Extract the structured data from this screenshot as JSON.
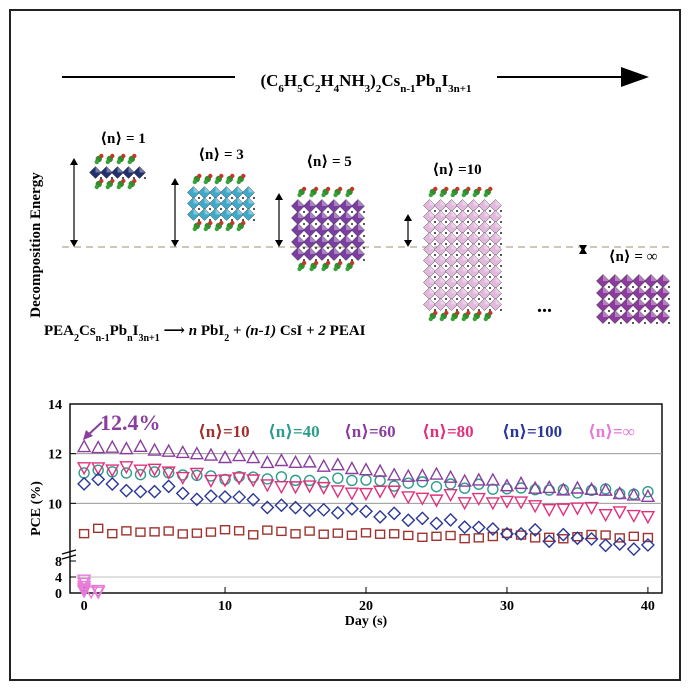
{
  "top": {
    "formula": {
      "main": "(C",
      "parts": [
        {
          "t": "(C",
          "sub": "6"
        },
        {
          "t": "H",
          "sub": "5"
        },
        {
          "t": "C",
          "sub": "2"
        },
        {
          "t": "H",
          "sub": "4"
        },
        {
          "t": "NH",
          "sub": "3"
        },
        {
          "t": ")",
          "sub": "2"
        },
        {
          "t": "Cs",
          "sub": "n-1"
        },
        {
          "t": "Pb",
          "sub": "n"
        },
        {
          "t": "I",
          "sub": "3n+1"
        }
      ]
    },
    "y_axis_label": "Decomposition Energy",
    "phases": [
      {
        "label": "⟨n⟩ = 1",
        "rows": 1,
        "color": "#23306e"
      },
      {
        "label": "⟨n⟩ = 3",
        "rows": 3,
        "color": "#3fa9c9"
      },
      {
        "label": "⟨n⟩ = 5",
        "rows": 5,
        "color": "#7a3fa0"
      },
      {
        "label": "⟨n⟩ =10",
        "rows": 10,
        "color": "#e2b9dc"
      },
      {
        "label": "⟨n⟩ = ∞",
        "rows": 4,
        "color": "#8c3c9c"
      }
    ],
    "ellipsis": "...",
    "reaction": {
      "reactant": [
        {
          "t": "PEA",
          "sub": "2"
        },
        {
          "t": "Cs",
          "sub": "n-1"
        },
        {
          "t": "Pb",
          "sub": "n"
        },
        {
          "t": "I",
          "sub": "3n+1"
        }
      ],
      "products": "n PbI₂ + (n-1) CsI + 2 PEAI",
      "product_parts": [
        {
          "t": "n",
          "italic": true
        },
        {
          "t": " PbI",
          "sub": "2"
        },
        {
          "t": " + "
        },
        {
          "t": "(n-1)",
          "italic": true
        },
        {
          "t": " CsI + "
        },
        {
          "t": "2",
          "italic": true
        },
        {
          "t": " PEAI"
        }
      ]
    }
  },
  "chart_data": {
    "type": "scatter",
    "xlabel": "Day (s)",
    "ylabel": "PCE (%)",
    "xlim": [
      -1,
      41
    ],
    "x_ticks": [
      0,
      10,
      20,
      30,
      40
    ],
    "y_ticks_upper": [
      8,
      10,
      12,
      14
    ],
    "y_ticks_lower": [
      0,
      4,
      8
    ],
    "grid": "horizontal",
    "annotation": "12.4%",
    "legend": [
      {
        "label": "⟨n⟩=10",
        "color": "#a0322d",
        "marker": "square"
      },
      {
        "label": "⟨n⟩=40",
        "color": "#2e9c8c",
        "marker": "circle"
      },
      {
        "label": "⟨n⟩=60",
        "color": "#8a3f9e",
        "marker": "triangle-up"
      },
      {
        "label": "⟨n⟩=80",
        "color": "#e0317d",
        "marker": "triangle-down"
      },
      {
        "label": "⟨n⟩=100",
        "color": "#2a3796",
        "marker": "diamond"
      },
      {
        "label": "⟨n⟩=∞",
        "color": "#e77ad8",
        "marker": "triangle-down"
      }
    ],
    "series": [
      {
        "name": "⟨n⟩=10",
        "start": 8.9,
        "end": 8.6,
        "noise": 0.12
      },
      {
        "name": "⟨n⟩=40",
        "start": 11.3,
        "end": 10.4,
        "noise": 0.12
      },
      {
        "name": "⟨n⟩=60",
        "start": 12.4,
        "end": 10.3,
        "noise": 0.12
      },
      {
        "name": "⟨n⟩=80",
        "start": 11.5,
        "end": 9.5,
        "noise": 0.15
      },
      {
        "name": "⟨n⟩=100",
        "start": 10.9,
        "end": 8.2,
        "noise": 0.2
      },
      {
        "name": "⟨n⟩=∞",
        "points": [
          [
            0,
            3.2
          ],
          [
            0,
            2.4
          ],
          [
            0,
            1.6
          ],
          [
            0,
            1.0
          ],
          [
            0,
            0.5
          ],
          [
            1,
            0.2
          ],
          [
            1,
            0.6
          ],
          [
            0.5,
            0.3
          ]
        ]
      }
    ]
  }
}
